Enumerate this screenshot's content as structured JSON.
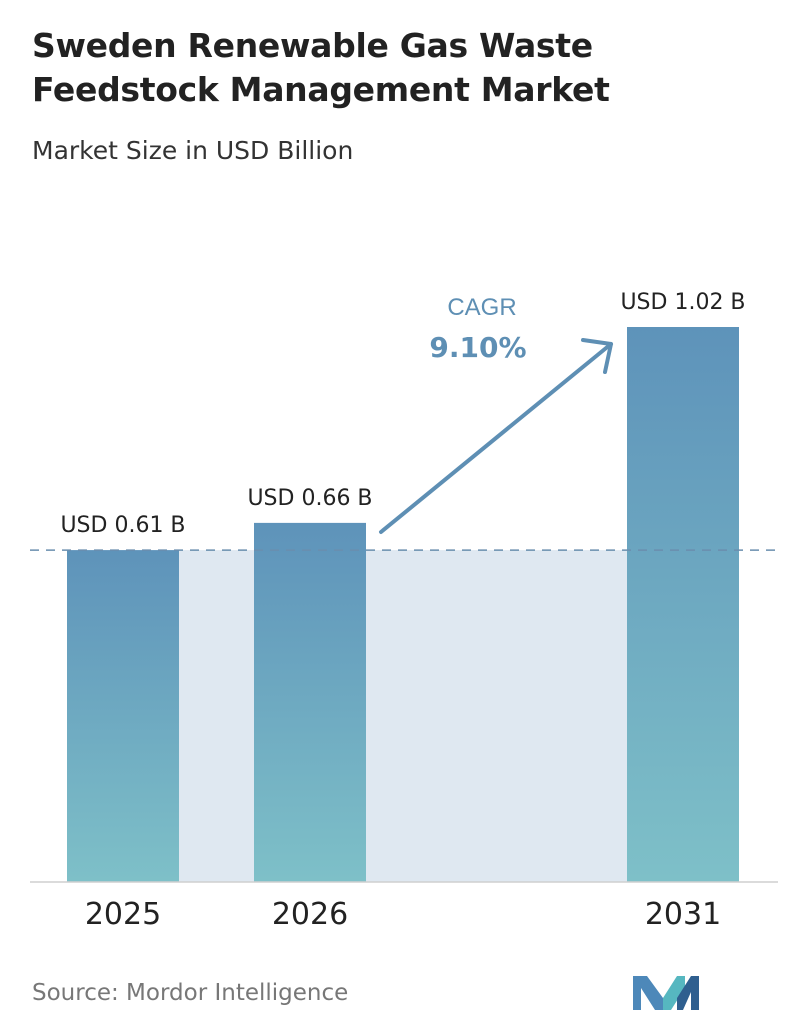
{
  "header": {
    "title": "Sweden Renewable Gas Waste Feedstock Management Market",
    "subtitle": "Market Size in USD Billion"
  },
  "chart_data": {
    "type": "bar",
    "categories": [
      "2025",
      "2026",
      "2031"
    ],
    "values": [
      0.61,
      0.66,
      1.02
    ],
    "value_labels": [
      "USD 0.61 B",
      "USD 0.66 B",
      "USD 1.02 B"
    ],
    "title": "Sweden Renewable Gas Waste Feedstock Management Market",
    "subtitle": "Market Size in USD Billion",
    "xlabel": "",
    "ylabel": "",
    "ylim": [
      0,
      1.02
    ],
    "grid": false,
    "reference_line_value": 0.61,
    "annotation": {
      "label": "CAGR",
      "value": "9.10%"
    },
    "colors": {
      "bar_top": "#5e93ba",
      "bar_bottom": "#7ec0c8",
      "band": "#dfe8f1",
      "arrow": "#5e8fb4",
      "axis": "#cfcfcf",
      "ref_line": "#6a8eae"
    }
  },
  "footer": {
    "source": "Source:  Mordor Intelligence",
    "logo_icon": "mordor-intelligence-logo-icon"
  }
}
